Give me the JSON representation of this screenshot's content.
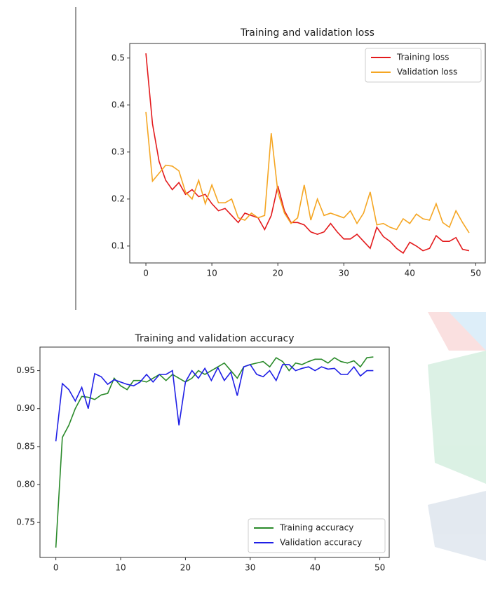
{
  "chart_data": [
    {
      "type": "line",
      "title": "Training and validation loss",
      "x": [
        0,
        1,
        2,
        3,
        4,
        5,
        6,
        7,
        8,
        9,
        10,
        11,
        12,
        13,
        14,
        15,
        16,
        17,
        18,
        19,
        20,
        21,
        22,
        23,
        24,
        25,
        26,
        27,
        28,
        29,
        30,
        31,
        32,
        33,
        34,
        35,
        36,
        37,
        38,
        39,
        40,
        41,
        42,
        43,
        44,
        45,
        46,
        47,
        48,
        49
      ],
      "series": [
        {
          "name": "Training loss",
          "color": "#e31a1c",
          "values": [
            0.51,
            0.36,
            0.28,
            0.24,
            0.22,
            0.235,
            0.21,
            0.22,
            0.205,
            0.21,
            0.19,
            0.175,
            0.18,
            0.165,
            0.15,
            0.17,
            0.165,
            0.16,
            0.135,
            0.165,
            0.228,
            0.175,
            0.15,
            0.15,
            0.145,
            0.13,
            0.125,
            0.13,
            0.148,
            0.13,
            0.115,
            0.115,
            0.125,
            0.11,
            0.095,
            0.14,
            0.12,
            0.11,
            0.095,
            0.085,
            0.108,
            0.1,
            0.09,
            0.095,
            0.122,
            0.11,
            0.11,
            0.118,
            0.093,
            0.09
          ]
        },
        {
          "name": "Validation loss",
          "color": "#f5a623",
          "values": [
            0.385,
            0.238,
            0.255,
            0.272,
            0.27,
            0.26,
            0.215,
            0.2,
            0.24,
            0.19,
            0.23,
            0.192,
            0.192,
            0.2,
            0.16,
            0.155,
            0.17,
            0.16,
            0.165,
            0.34,
            0.215,
            0.17,
            0.148,
            0.16,
            0.23,
            0.155,
            0.2,
            0.165,
            0.17,
            0.165,
            0.16,
            0.175,
            0.148,
            0.17,
            0.215,
            0.145,
            0.148,
            0.14,
            0.135,
            0.158,
            0.148,
            0.168,
            0.158,
            0.155,
            0.19,
            0.15,
            0.14,
            0.175,
            0.15,
            0.128
          ]
        }
      ],
      "xlim": [
        -2.45,
        51.45
      ],
      "xticks": [
        0,
        10,
        20,
        30,
        40,
        50
      ],
      "ylim": [
        0.064,
        0.531
      ],
      "yticks": [
        0.1,
        0.2,
        0.3,
        0.4,
        0.5
      ],
      "legend": "upper right"
    },
    {
      "type": "line",
      "title": "Training and validation accuracy",
      "x": [
        0,
        1,
        2,
        3,
        4,
        5,
        6,
        7,
        8,
        9,
        10,
        11,
        12,
        13,
        14,
        15,
        16,
        17,
        18,
        19,
        20,
        21,
        22,
        23,
        24,
        25,
        26,
        27,
        28,
        29,
        30,
        31,
        32,
        33,
        34,
        35,
        36,
        37,
        38,
        39,
        40,
        41,
        42,
        43,
        44,
        45,
        46,
        47,
        48,
        49
      ],
      "series": [
        {
          "name": "Training accuracy",
          "color": "#2a8a2a",
          "values": [
            0.717,
            0.862,
            0.878,
            0.9,
            0.916,
            0.915,
            0.912,
            0.918,
            0.92,
            0.94,
            0.93,
            0.925,
            0.937,
            0.937,
            0.935,
            0.94,
            0.945,
            0.937,
            0.945,
            0.94,
            0.935,
            0.94,
            0.95,
            0.945,
            0.95,
            0.955,
            0.96,
            0.95,
            0.94,
            0.955,
            0.958,
            0.96,
            0.962,
            0.955,
            0.967,
            0.962,
            0.95,
            0.96,
            0.958,
            0.962,
            0.965,
            0.965,
            0.96,
            0.967,
            0.962,
            0.96,
            0.963,
            0.955,
            0.967,
            0.968
          ]
        },
        {
          "name": "Validation accuracy",
          "color": "#1f1fe6",
          "values": [
            0.857,
            0.933,
            0.925,
            0.91,
            0.928,
            0.9,
            0.946,
            0.942,
            0.932,
            0.938,
            0.935,
            0.932,
            0.93,
            0.935,
            0.945,
            0.935,
            0.945,
            0.945,
            0.95,
            0.878,
            0.935,
            0.95,
            0.94,
            0.953,
            0.937,
            0.954,
            0.937,
            0.948,
            0.917,
            0.955,
            0.958,
            0.945,
            0.942,
            0.95,
            0.937,
            0.958,
            0.958,
            0.95,
            0.953,
            0.955,
            0.95,
            0.955,
            0.952,
            0.953,
            0.945,
            0.945,
            0.955,
            0.943,
            0.95,
            0.95
          ]
        }
      ],
      "xlim": [
        -2.45,
        51.45
      ],
      "xticks": [
        0,
        10,
        20,
        30,
        40,
        50
      ],
      "ylim": [
        0.704,
        0.981
      ],
      "yticks": [
        0.75,
        {
          "value": 0.8,
          "label": "0.80"
        },
        0.85,
        {
          "value": 0.9,
          "label": "0.90"
        },
        0.95
      ],
      "legend": "lower right"
    }
  ]
}
